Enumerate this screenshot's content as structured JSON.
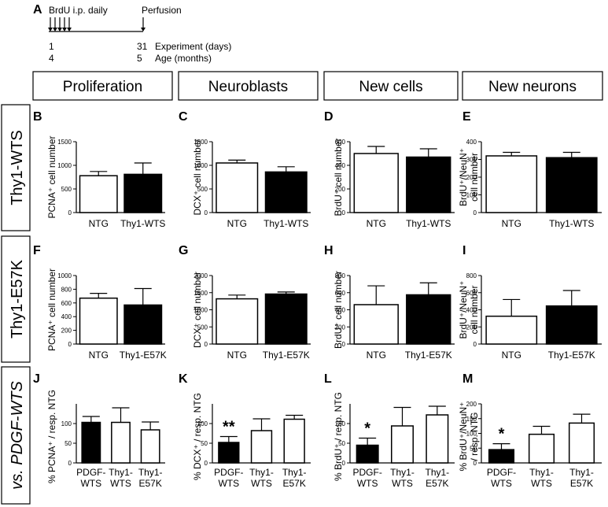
{
  "timeline": {
    "panel_letter": "A",
    "brdu_label": "BrdU i.p. daily",
    "perfusion_label": "Perfusion",
    "exp_start": "1",
    "exp_end": "31",
    "exp_label": "Experiment (days)",
    "age_start": "4",
    "age_end": "5",
    "age_label": "Age (months)"
  },
  "columns": [
    "Proliferation",
    "Neuroblasts",
    "New cells",
    "New neurons"
  ],
  "rows": [
    "Thy1-WTS",
    "Thy1-E57K",
    "vs. PDGF-WTS"
  ],
  "chart_data": [
    {
      "panel": "B",
      "type": "bar",
      "ylabel": [
        "PCNA⁺ cell number"
      ],
      "categories": [
        "NTG",
        "Thy1-WTS"
      ],
      "values": [
        780,
        810
      ],
      "errors": [
        90,
        240
      ],
      "fills": [
        "#ffffff",
        "#000000"
      ],
      "ylim": [
        0,
        1500
      ],
      "yticks": [
        "0",
        "500",
        "1000",
        "1500"
      ],
      "signif": ""
    },
    {
      "panel": "C",
      "type": "bar",
      "ylabel": [
        "DCX⁺ cell number"
      ],
      "categories": [
        "NTG",
        "Thy1-WTS"
      ],
      "values": [
        1050,
        860
      ],
      "errors": [
        60,
        110
      ],
      "fills": [
        "#ffffff",
        "#000000"
      ],
      "ylim": [
        0,
        1500
      ],
      "yticks": [
        "0",
        "500",
        "1000",
        "1500"
      ],
      "signif": ""
    },
    {
      "panel": "D",
      "type": "bar",
      "ylabel": [
        "BrdU⁺ cell number"
      ],
      "categories": [
        "NTG",
        "Thy1-WTS"
      ],
      "values": [
        500,
        470
      ],
      "errors": [
        60,
        70
      ],
      "fills": [
        "#ffffff",
        "#000000"
      ],
      "ylim": [
        0,
        600
      ],
      "yticks": [
        "0",
        "200",
        "400",
        "600"
      ],
      "signif": ""
    },
    {
      "panel": "E",
      "type": "bar",
      "ylabel": [
        "BrdU⁺/NeuN⁺",
        "cell number"
      ],
      "categories": [
        "NTG",
        "Thy1-WTS"
      ],
      "values": [
        320,
        310
      ],
      "errors": [
        20,
        30
      ],
      "fills": [
        "#ffffff",
        "#000000"
      ],
      "ylim": [
        0,
        400
      ],
      "yticks": [
        "0",
        "100",
        "200",
        "300",
        "400"
      ],
      "signif": ""
    },
    {
      "panel": "F",
      "type": "bar",
      "ylabel": [
        "PCNA⁺ cell number"
      ],
      "categories": [
        "NTG",
        "Thy1-E57K"
      ],
      "values": [
        670,
        570
      ],
      "errors": [
        70,
        240
      ],
      "fills": [
        "#ffffff",
        "#000000"
      ],
      "ylim": [
        0,
        1000
      ],
      "yticks": [
        "0",
        "200",
        "400",
        "600",
        "800",
        "1000"
      ],
      "signif": ""
    },
    {
      "panel": "G",
      "type": "bar",
      "ylabel": [
        "DCX⁺ cell number"
      ],
      "categories": [
        "NTG",
        "Thy1-E57K"
      ],
      "values": [
        1320,
        1460
      ],
      "errors": [
        110,
        60
      ],
      "fills": [
        "#ffffff",
        "#000000"
      ],
      "ylim": [
        0,
        2000
      ],
      "yticks": [
        "0",
        "500",
        "1000",
        "1500",
        "2000"
      ],
      "signif": ""
    },
    {
      "panel": "H",
      "type": "bar",
      "ylabel": [
        "BrdU⁺ cell number"
      ],
      "categories": [
        "NTG",
        "Thy1-E57K"
      ],
      "values": [
        460,
        575
      ],
      "errors": [
        220,
        140
      ],
      "fills": [
        "#ffffff",
        "#000000"
      ],
      "ylim": [
        0,
        800
      ],
      "yticks": [
        "0",
        "200",
        "400",
        "600",
        "800"
      ],
      "signif": ""
    },
    {
      "panel": "I",
      "type": "bar",
      "ylabel": [
        "BrdU⁺/NeuN⁺",
        "cell number"
      ],
      "categories": [
        "NTG",
        "Thy1-E57K"
      ],
      "values": [
        325,
        445
      ],
      "errors": [
        195,
        180
      ],
      "fills": [
        "#ffffff",
        "#000000"
      ],
      "ylim": [
        0,
        800
      ],
      "yticks": [
        "0",
        "200",
        "400",
        "600",
        "800"
      ],
      "signif": ""
    },
    {
      "panel": "J",
      "type": "bar",
      "ylabel": [
        "% PCNA⁺ / resp. NTG"
      ],
      "categories": [
        [
          "PDGF-",
          "WTS"
        ],
        [
          "Thy1-",
          "WTS"
        ],
        [
          "Thy1-",
          "E57K"
        ]
      ],
      "values": [
        103,
        103,
        84
      ],
      "errors": [
        15,
        37,
        20
      ],
      "fills": [
        "#000000",
        "#ffffff",
        "#ffffff"
      ],
      "ylim": [
        0,
        150
      ],
      "yticks": [
        "0",
        "50",
        "100"
      ],
      "signif": ""
    },
    {
      "panel": "K",
      "type": "bar",
      "ylabel": [
        "% DCX⁺ / resp. NTG"
      ],
      "categories": [
        [
          "PDGF-",
          "WTS"
        ],
        [
          "Thy1-",
          "WTS"
        ],
        [
          "Thy1-",
          "E57K"
        ]
      ],
      "values": [
        52,
        82,
        111
      ],
      "errors": [
        15,
        30,
        10
      ],
      "fills": [
        "#000000",
        "#ffffff",
        "#ffffff"
      ],
      "ylim": [
        0,
        150
      ],
      "yticks": [
        "0",
        "50",
        "100"
      ],
      "signif": "**"
    },
    {
      "panel": "L",
      "type": "bar",
      "ylabel": [
        "% BrdU⁺ / resp. NTG"
      ],
      "categories": [
        [
          "PDGF-",
          "WTS"
        ],
        [
          "Thy1-",
          "WTS"
        ],
        [
          "Thy1-",
          "E57K"
        ]
      ],
      "values": [
        45,
        94,
        122
      ],
      "errors": [
        18,
        47,
        22
      ],
      "fills": [
        "#000000",
        "#ffffff",
        "#ffffff"
      ],
      "ylim": [
        0,
        150
      ],
      "yticks": [
        "0",
        "50",
        "100"
      ],
      "signif": "*"
    },
    {
      "panel": "M",
      "type": "bar",
      "ylabel": [
        "% BrdU⁺/NeuN⁺",
        "/ resp. NTG"
      ],
      "categories": [
        [
          "PDGF-",
          "WTS"
        ],
        [
          "Thy1-",
          "WTS"
        ],
        [
          "Thy1-",
          "E57K"
        ]
      ],
      "values": [
        45,
        97,
        135
      ],
      "errors": [
        20,
        27,
        30
      ],
      "fills": [
        "#000000",
        "#ffffff",
        "#ffffff"
      ],
      "ylim": [
        0,
        200
      ],
      "yticks": [
        "0",
        "50",
        "100",
        "150",
        "200"
      ],
      "signif": "*"
    }
  ]
}
